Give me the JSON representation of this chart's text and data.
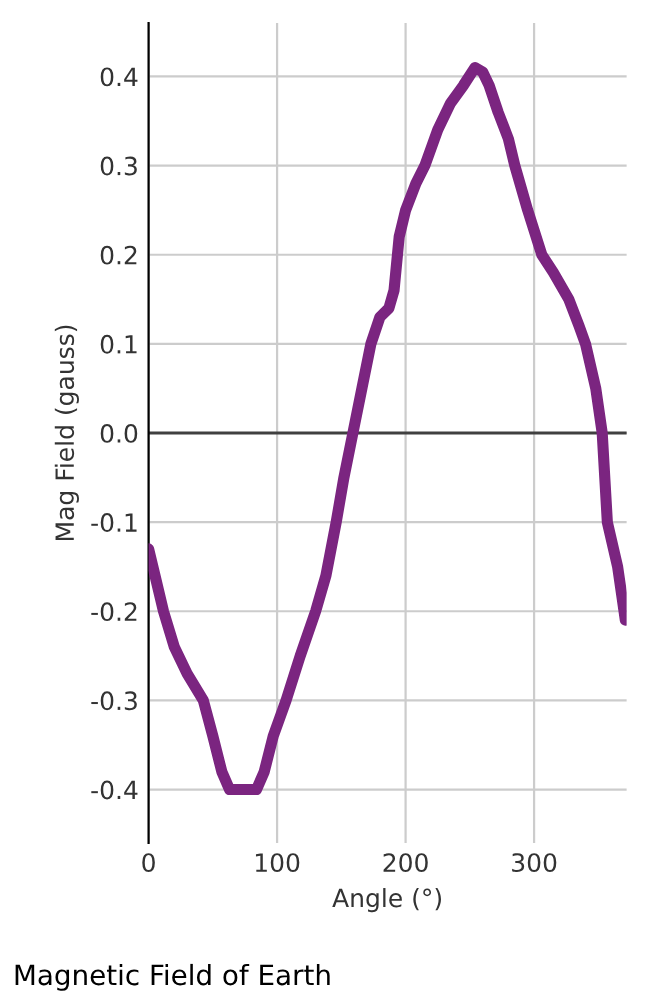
{
  "chart_data": {
    "type": "line",
    "title": "Magnetic Field of Earth",
    "xlabel": "Angle (°)",
    "ylabel": "Mag Field (gauss)",
    "series": [
      {
        "color": "#7b2580",
        "x": [
          0,
          5,
          11.6,
          20,
          30,
          42.6,
          50,
          57,
          63,
          70,
          77,
          84,
          90,
          97,
          107,
          118,
          130,
          138,
          146,
          152,
          159,
          166,
          173,
          180,
          187,
          191,
          195,
          200,
          208,
          215,
          225,
          235,
          245,
          254,
          260,
          265,
          272,
          280,
          285,
          295,
          306,
          315,
          327,
          335,
          340,
          348,
          353,
          357,
          365,
          370,
          371
        ],
        "values": [
          -0.13,
          -0.16,
          -0.2,
          -0.24,
          -0.27,
          -0.3,
          -0.34,
          -0.38,
          -0.4,
          -0.4,
          -0.4,
          -0.4,
          -0.38,
          -0.34,
          -0.3,
          -0.25,
          -0.2,
          -0.16,
          -0.1,
          -0.05,
          0.0,
          0.05,
          0.1,
          0.13,
          0.14,
          0.16,
          0.22,
          0.25,
          0.28,
          0.3,
          0.34,
          0.37,
          0.39,
          0.41,
          0.405,
          0.39,
          0.36,
          0.33,
          0.3,
          0.25,
          0.2,
          0.18,
          0.15,
          0.12,
          0.1,
          0.05,
          0.0,
          -0.1,
          -0.15,
          -0.2,
          -0.21
        ]
      }
    ],
    "xlim": [
      0,
      372
    ],
    "xticks": [
      0,
      100,
      200,
      300
    ],
    "ylim": [
      -0.46,
      0.46
    ],
    "yticks": [
      -0.4,
      -0.3,
      -0.2,
      -0.1,
      {
        "value": 0,
        "label": "0.0"
      },
      0.1,
      0.2,
      0.3,
      0.4
    ],
    "ref_lines": [
      {
        "axis": "y",
        "value": 0,
        "color": "#404040"
      }
    ],
    "grid": true,
    "legend": false,
    "marker": "none",
    "line_style": "solid"
  }
}
